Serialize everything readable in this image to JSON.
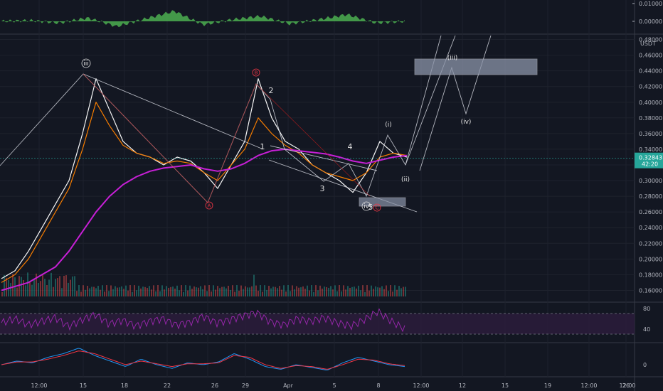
{
  "chart_data": [
    {
      "type": "line",
      "panel": "oscillator-top",
      "series": [
        {
          "color": "#4caf50",
          "values": [
            0.0,
            0.001,
            -0.002,
            0.004,
            -0.006,
            0.003,
            0.012,
            -0.004,
            0.002,
            0.006,
            -0.003,
            0.002,
            0.008,
            -0.002,
            0.0
          ]
        }
      ],
      "yticks": [
        "0.01000",
        "0.00000"
      ]
    },
    {
      "type": "line",
      "panel": "price",
      "quote_label": "USDT",
      "y_ticks": [
        "0.48000",
        "0.46000",
        "0.44000",
        "0.42000",
        "0.40000",
        "0.38000",
        "0.36000",
        "0.34000",
        "0.32000",
        "0.30000",
        "0.28000",
        "0.26000",
        "0.24000",
        "0.22000",
        "0.20000",
        "0.18000",
        "0.16000"
      ],
      "ylim": [
        0.145,
        0.485
      ],
      "current_price": "0.32843",
      "countdown": "42:20",
      "x_ticks": [
        "12:00",
        "15",
        "18",
        "22",
        "26",
        "29",
        "Apr",
        "5",
        "8",
        "12:00",
        "12",
        "15",
        "19",
        "12:00",
        "26",
        "12:00"
      ],
      "series": [
        {
          "color": "#f7f7f7",
          "values": [
            0.175,
            0.185,
            0.21,
            0.24,
            0.27,
            0.3,
            0.36,
            0.43,
            0.39,
            0.35,
            0.335,
            0.33,
            0.32,
            0.33,
            0.325,
            0.31,
            0.29,
            0.32,
            0.35,
            0.43,
            0.38,
            0.35,
            0.34,
            0.32,
            0.31,
            0.3,
            0.285,
            0.31,
            0.35,
            0.335,
            0.33
          ]
        },
        {
          "color": "#f57c00",
          "values": [
            0.17,
            0.18,
            0.2,
            0.23,
            0.26,
            0.29,
            0.34,
            0.4,
            0.37,
            0.345,
            0.335,
            0.33,
            0.322,
            0.325,
            0.322,
            0.31,
            0.3,
            0.32,
            0.34,
            0.38,
            0.36,
            0.345,
            0.335,
            0.32,
            0.31,
            0.305,
            0.3,
            0.31,
            0.33,
            0.335,
            0.332
          ]
        },
        {
          "color": "#c71fd6",
          "values": [
            0.16,
            0.165,
            0.17,
            0.18,
            0.19,
            0.21,
            0.235,
            0.26,
            0.28,
            0.295,
            0.305,
            0.312,
            0.316,
            0.318,
            0.32,
            0.315,
            0.312,
            0.315,
            0.322,
            0.332,
            0.338,
            0.34,
            0.338,
            0.336,
            0.334,
            0.33,
            0.325,
            0.322,
            0.326,
            0.33,
            0.332
          ]
        }
      ],
      "wave_labels": [
        "iii",
        "B",
        "2",
        "1",
        "A",
        "4",
        "3",
        "(i)",
        "(ii)",
        "(iii)",
        "(iv)",
        "C",
        "5",
        "iv"
      ]
    },
    {
      "type": "line",
      "panel": "rsi",
      "series": [
        {
          "color": "#9c27b0",
          "values": [
            52,
            60,
            48,
            55,
            62,
            45,
            58,
            68,
            50,
            57,
            46,
            55,
            60,
            48,
            53,
            65,
            52,
            58,
            66,
            72,
            54,
            48,
            60,
            55,
            62,
            52,
            46,
            58,
            74,
            55,
            40
          ]
        }
      ],
      "yticks": [
        "80",
        "40"
      ],
      "bands": [
        70,
        30
      ]
    },
    {
      "type": "line",
      "panel": "macd",
      "series": [
        {
          "color": "#2196f3",
          "values": [
            0.0,
            0.004,
            0.002,
            0.008,
            0.012,
            0.018,
            0.01,
            0.004,
            -0.002,
            0.006,
            0.0,
            -0.004,
            0.002,
            0.0,
            0.003,
            0.012,
            0.006,
            -0.002,
            -0.005,
            0.0,
            -0.003,
            -0.006,
            0.002,
            0.008,
            0.004,
            0.0,
            -0.002
          ]
        },
        {
          "color": "#f23645",
          "values": [
            0.0,
            0.003,
            0.003,
            0.006,
            0.01,
            0.015,
            0.012,
            0.006,
            0.0,
            0.004,
            0.001,
            -0.002,
            0.001,
            0.001,
            0.002,
            0.01,
            0.008,
            0.0,
            -0.004,
            -0.001,
            -0.002,
            -0.005,
            0.0,
            0.006,
            0.005,
            0.001,
            -0.001
          ]
        }
      ],
      "yticks": [
        "0"
      ]
    }
  ]
}
